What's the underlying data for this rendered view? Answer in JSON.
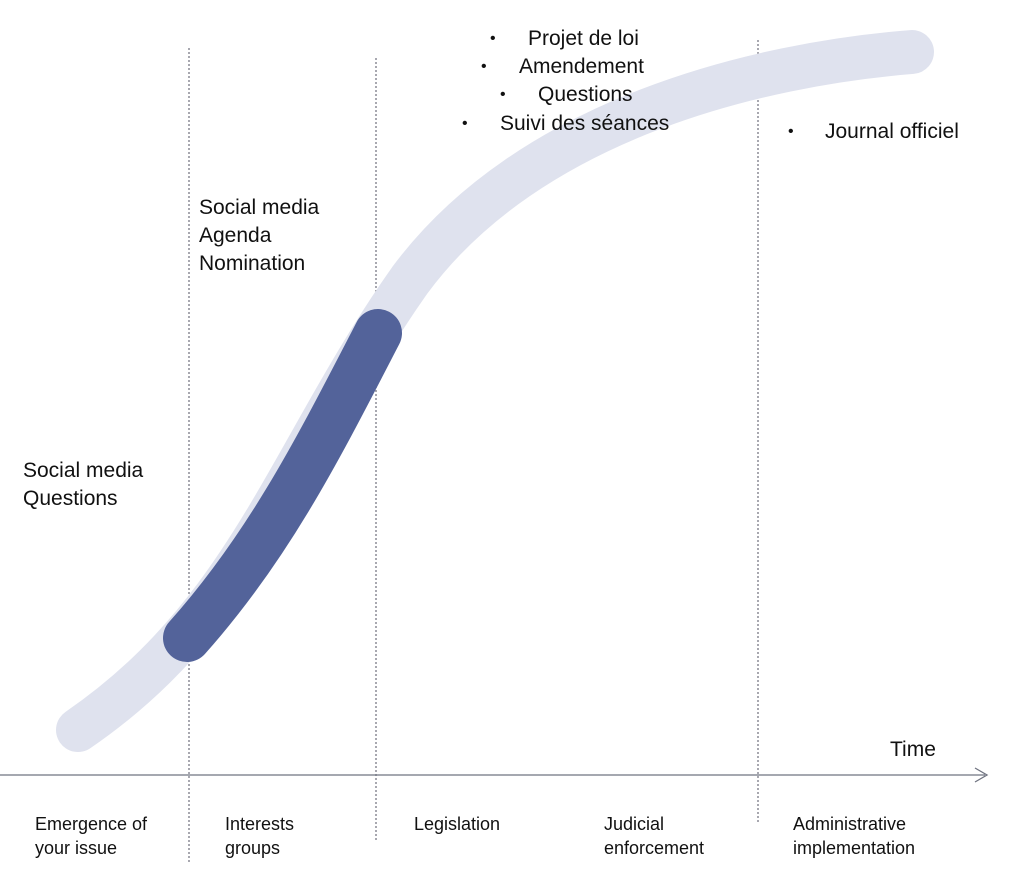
{
  "axis": {
    "label": "Time"
  },
  "phases": [
    {
      "label": "Emergence of\nyour issue"
    },
    {
      "label": "Interests\ngroups"
    },
    {
      "label": "Legislation"
    },
    {
      "label": "Judicial\nenforcement"
    },
    {
      "label": "Administrative\nimplementation"
    }
  ],
  "annotations": {
    "emergence": [
      "Social media",
      "Questions"
    ],
    "interests": [
      "Social media",
      "Agenda",
      "Nomination"
    ]
  },
  "legislation_bullets": [
    "Projet de loi",
    "Amendement",
    "Questions",
    "Suivi des séances"
  ],
  "administrative_bullets": [
    "Journal officiel"
  ],
  "bullet_glyph": "•",
  "colors": {
    "curve_light": "#dfe2ee",
    "curve_highlight": "#53639a",
    "divider": "#7a7a85",
    "axis": "#6f7380",
    "text": "#111111"
  }
}
